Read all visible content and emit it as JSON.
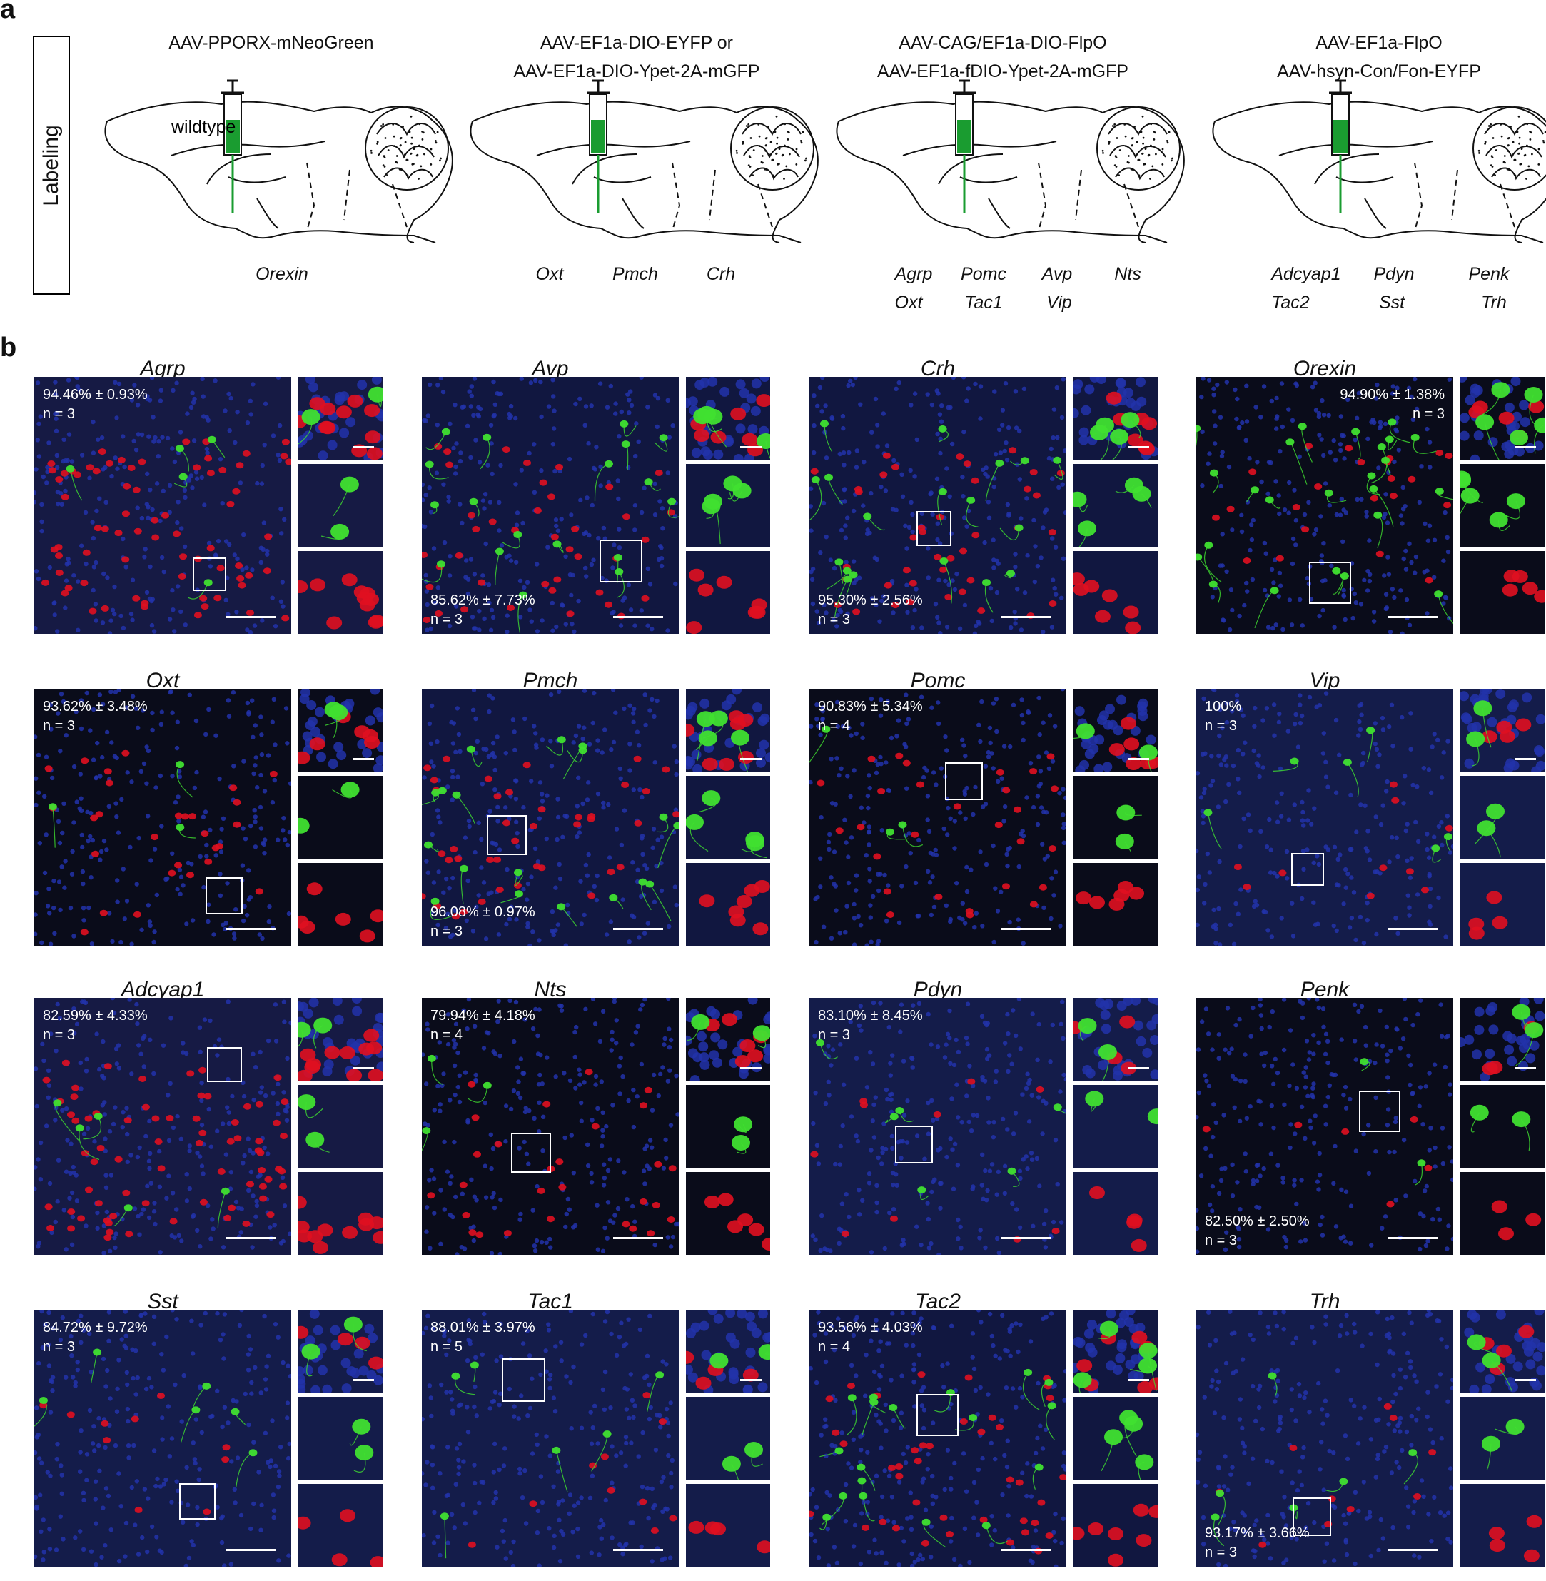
{
  "panel_labels": {
    "a": "a",
    "b": "b"
  },
  "labeling_label": "Labeling",
  "labeling": [
    {
      "vector": [
        "AAV-PPORX-mNeoGreen",
        ""
      ],
      "annotation": "wildtype",
      "gene_rows": [
        [
          "Orexin"
        ]
      ]
    },
    {
      "vector": [
        "AAV-EF1a-DIO-EYFP  or",
        "AAV-EF1a-DIO-Ypet-2A-mGFP"
      ],
      "annotation": "",
      "gene_rows": [
        [
          "Oxt",
          "Pmch",
          "Crh"
        ]
      ]
    },
    {
      "vector": [
        "AAV-CAG/EF1a-DIO-FlpO",
        "AAV-EF1a-fDIO-Ypet-2A-mGFP"
      ],
      "annotation": "",
      "gene_rows": [
        [
          "Agrp",
          "Pomc",
          "Avp",
          "Nts"
        ],
        [
          "Oxt",
          "Tac1",
          "Vip",
          ""
        ]
      ]
    },
    {
      "vector": [
        "AAV-EF1a-FlpO",
        "AAV-hsyn-Con/Fon-EYFP"
      ],
      "annotation": "",
      "gene_rows": [
        [
          "Adcyap1",
          "Pdyn",
          "Penk"
        ],
        [
          "Tac2",
          "Sst",
          "Trh"
        ]
      ]
    }
  ],
  "panels": [
    {
      "gene": "Agrp",
      "pct": "94.46% ± 0.93%",
      "n": "n = 3",
      "stat_pos": "top-left",
      "style": "red-dense"
    },
    {
      "gene": "Avp",
      "pct": "85.62% ± 7.73%",
      "n": "n = 3",
      "stat_pos": "bottom-left",
      "style": "mixed"
    },
    {
      "gene": "Crh",
      "pct": "95.30% ± 2.56%",
      "n": "n = 3",
      "stat_pos": "bottom-left",
      "style": "mixed"
    },
    {
      "gene": "Orexin",
      "pct": "94.90% ± 1.38%",
      "n": "n = 3",
      "stat_pos": "top-right",
      "style": "green"
    },
    {
      "gene": "Oxt",
      "pct": "93.62% ± 3.48%",
      "n": "n = 3",
      "stat_pos": "top-left",
      "style": "red-sparse"
    },
    {
      "gene": "Pmch",
      "pct": "96.08% ± 0.97%",
      "n": "n = 3",
      "stat_pos": "bottom-left",
      "style": "mixed"
    },
    {
      "gene": "Pomc",
      "pct": "90.83% ± 5.34%",
      "n": "n = 4",
      "stat_pos": "top-left",
      "style": "red-sparse"
    },
    {
      "gene": "Vip",
      "pct": "100%",
      "n": "n = 3",
      "stat_pos": "top-left",
      "style": "blue"
    },
    {
      "gene": "Adcyap1",
      "pct": "82.59% ± 4.33%",
      "n": "n = 3",
      "stat_pos": "top-left",
      "style": "red-dense"
    },
    {
      "gene": "Nts",
      "pct": "79.94% ± 4.18%",
      "n": "n = 4",
      "stat_pos": "top-left",
      "style": "red-sparse"
    },
    {
      "gene": "Pdyn",
      "pct": "83.10% ± 8.45%",
      "n": "n = 3",
      "stat_pos": "top-left",
      "style": "blue"
    },
    {
      "gene": "Penk",
      "pct": "82.50% ± 2.50%",
      "n": "n = 3",
      "stat_pos": "bottom-left",
      "style": "dark"
    },
    {
      "gene": "Sst",
      "pct": "84.72% ± 9.72%",
      "n": "n = 3",
      "stat_pos": "top-left",
      "style": "blue"
    },
    {
      "gene": "Tac1",
      "pct": "88.01% ± 3.97%",
      "n": "n = 5",
      "stat_pos": "top-left",
      "style": "blue"
    },
    {
      "gene": "Tac2",
      "pct": "93.56% ± 4.03%",
      "n": "n = 4",
      "stat_pos": "top-left",
      "style": "mixed"
    },
    {
      "gene": "Trh",
      "pct": "93.17% ± 3.66%",
      "n": "n = 3",
      "stat_pos": "bottom-left",
      "style": "blue"
    }
  ],
  "colors": {
    "nucleus_blue": "#2233aa",
    "marker_red": "#e01020",
    "reporter_green": "#40e030",
    "syringe_green": "#1a9c30",
    "background_dark": "#0a0c1a"
  }
}
